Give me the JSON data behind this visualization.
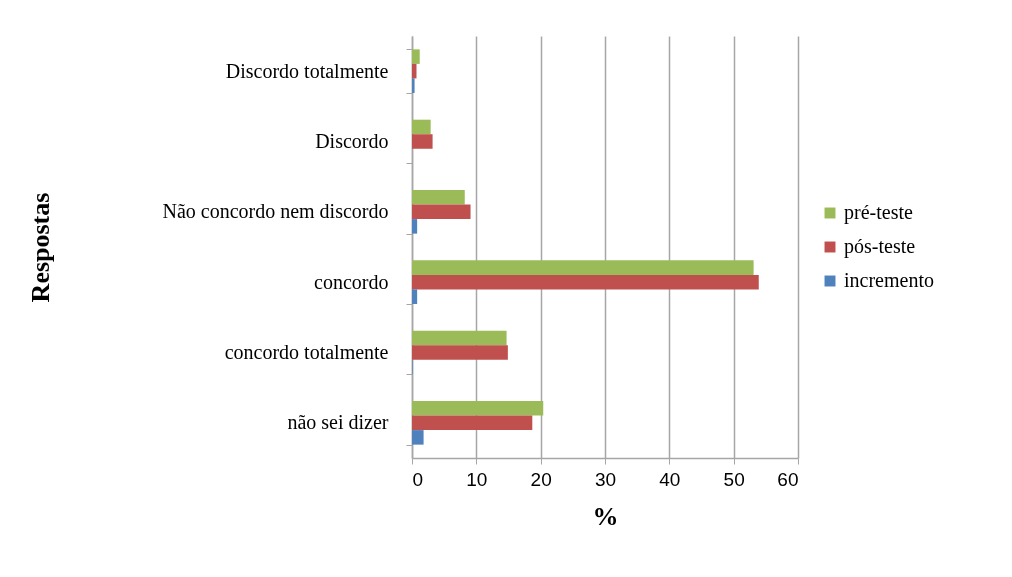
{
  "chart_data": {
    "type": "bar",
    "orientation": "horizontal",
    "xlabel": "%",
    "ylabel": "Respostas",
    "categories": [
      "Discordo totalmente",
      "Discordo",
      "Não concordo nem discordo",
      "concordo",
      "concordo totalmente",
      "não sei dizer"
    ],
    "series": [
      {
        "name": "pré-teste",
        "color": "#9bbb59",
        "values": [
          1.2,
          2.9,
          8.2,
          53.1,
          14.7,
          20.4
        ]
      },
      {
        "name": "pós-teste",
        "color": "#c0504d",
        "values": [
          0.7,
          3.2,
          9.1,
          53.9,
          14.9,
          18.7
        ]
      },
      {
        "name": "incremento",
        "color": "#4f81bd",
        "values": [
          0.4,
          0,
          0.8,
          0.8,
          0.1,
          1.8
        ]
      }
    ],
    "xlim": [
      0,
      60
    ],
    "xticks": [
      0,
      10,
      20,
      30,
      40,
      50,
      60
    ],
    "grid": "x",
    "legend": "right"
  }
}
